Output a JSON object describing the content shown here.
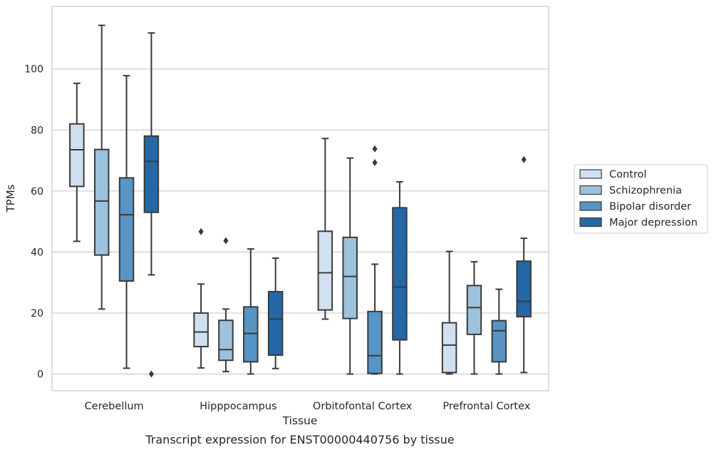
{
  "chart_data": {
    "type": "boxplot",
    "title": "",
    "caption": "Transcript expression for ENST00000440756 by tissue",
    "xlabel": "Tissue",
    "ylabel": "TPMs",
    "ylim": [
      -5.5,
      120.5
    ],
    "yticks": [
      0,
      20,
      40,
      60,
      80,
      100
    ],
    "grid": "horizontal",
    "legend_position": "right",
    "categories": [
      "Cerebellum",
      "Hipppocampus",
      "Orbitofontal Cortex",
      "Prefrontal Cortex"
    ],
    "series": [
      {
        "name": "Control",
        "color": "#d0e0f1",
        "boxes": [
          {
            "whisker_low": 43.5,
            "q1": 61.5,
            "median": 73.5,
            "q3": 82.0,
            "whisker_high": 95.3,
            "outliers": []
          },
          {
            "whisker_low": 2.0,
            "q1": 9.0,
            "median": 13.8,
            "q3": 20.0,
            "whisker_high": 29.5,
            "outliers": [
              46.7
            ]
          },
          {
            "whisker_low": 18.0,
            "q1": 21.0,
            "median": 33.2,
            "q3": 46.8,
            "whisker_high": 77.2,
            "outliers": []
          },
          {
            "whisker_low": 0.0,
            "q1": 0.5,
            "median": 9.5,
            "q3": 16.8,
            "whisker_high": 40.2,
            "outliers": []
          }
        ]
      },
      {
        "name": "Schizophrenia",
        "color": "#9cc2dd",
        "boxes": [
          {
            "whisker_low": 21.3,
            "q1": 39.0,
            "median": 56.7,
            "q3": 73.6,
            "whisker_high": 114.3,
            "outliers": []
          },
          {
            "whisker_low": 0.8,
            "q1": 4.5,
            "median": 8.0,
            "q3": 17.6,
            "whisker_high": 21.3,
            "outliers": [
              43.7
            ]
          },
          {
            "whisker_low": 0.0,
            "q1": 18.2,
            "median": 32.0,
            "q3": 44.8,
            "whisker_high": 70.8,
            "outliers": []
          },
          {
            "whisker_low": 0.0,
            "q1": 13.0,
            "median": 21.8,
            "q3": 29.0,
            "whisker_high": 36.8,
            "outliers": []
          }
        ]
      },
      {
        "name": "Bipolar disorder",
        "color": "#5895c4",
        "boxes": [
          {
            "whisker_low": 1.9,
            "q1": 30.5,
            "median": 52.2,
            "q3": 64.3,
            "whisker_high": 97.8,
            "outliers": []
          },
          {
            "whisker_low": 0.0,
            "q1": 4.0,
            "median": 13.3,
            "q3": 22.0,
            "whisker_high": 41.0,
            "outliers": []
          },
          {
            "whisker_low": 0.0,
            "q1": 0.2,
            "median": 6.0,
            "q3": 20.5,
            "whisker_high": 36.0,
            "outliers": [
              69.3,
              73.8
            ]
          },
          {
            "whisker_low": 0.0,
            "q1": 4.0,
            "median": 14.2,
            "q3": 17.5,
            "whisker_high": 27.8,
            "outliers": []
          }
        ]
      },
      {
        "name": "Major depression",
        "color": "#2468a7",
        "boxes": [
          {
            "whisker_low": 32.5,
            "q1": 53.0,
            "median": 69.7,
            "q3": 78.0,
            "whisker_high": 111.8,
            "outliers": [
              0.0
            ]
          },
          {
            "whisker_low": 1.8,
            "q1": 6.2,
            "median": 18.0,
            "q3": 27.0,
            "whisker_high": 38.0,
            "outliers": []
          },
          {
            "whisker_low": 0.0,
            "q1": 11.2,
            "median": 28.5,
            "q3": 54.5,
            "whisker_high": 63.0,
            "outliers": []
          },
          {
            "whisker_low": 0.5,
            "q1": 18.8,
            "median": 23.8,
            "q3": 37.0,
            "whisker_high": 44.5,
            "outliers": [
              70.3
            ]
          }
        ]
      }
    ]
  }
}
